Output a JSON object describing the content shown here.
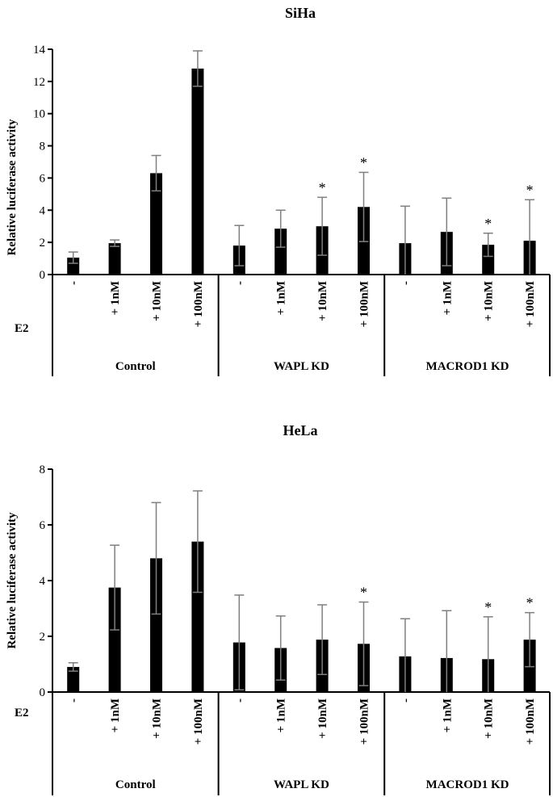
{
  "chart_data": [
    {
      "type": "bar",
      "title": "SiHa",
      "ylabel": "Relative luciferase activity",
      "ylim": [
        0,
        14
      ],
      "yticks": [
        "0",
        "2",
        "4",
        "6",
        "8",
        "10",
        "12",
        "14"
      ],
      "row_label": "E2",
      "categories": [
        "-",
        "+ 1nM",
        "+ 10nM",
        "+ 100nM",
        "-",
        "+ 1nM",
        "+ 10nM",
        "+ 100nM",
        "-",
        "+ 1nM",
        "+ 10nM",
        "+ 100nM"
      ],
      "groups": [
        "Control",
        "WAPL KD",
        "MACROD1 KD"
      ],
      "values": [
        1.05,
        1.95,
        6.3,
        12.8,
        1.8,
        2.85,
        3.0,
        4.2,
        1.95,
        2.65,
        1.85,
        2.1
      ],
      "errors": [
        0.35,
        0.2,
        1.1,
        1.1,
        1.25,
        1.15,
        1.8,
        2.15,
        2.3,
        2.1,
        0.72,
        2.55
      ],
      "significance": [
        "",
        "",
        "",
        "",
        "",
        "",
        "*",
        "*",
        "",
        "",
        "*",
        "*"
      ]
    },
    {
      "type": "bar",
      "title": "HeLa",
      "ylabel": "Relative luciferase activity",
      "ylim": [
        0,
        8
      ],
      "yticks": [
        "0",
        "2",
        "4",
        "6",
        "8"
      ],
      "row_label": "E2",
      "categories": [
        "-",
        "+ 1nM",
        "+ 10nM",
        "+ 100nM",
        "-",
        "+ 1nM",
        "+ 10nM",
        "+ 100nM",
        "-",
        "+ 1nM",
        "+ 10nM",
        "+ 100nM"
      ],
      "groups": [
        "Control",
        "WAPL KD",
        "MACROD1 KD"
      ],
      "values": [
        0.9,
        3.75,
        4.8,
        5.4,
        1.78,
        1.58,
        1.88,
        1.73,
        1.28,
        1.22,
        1.18,
        1.88
      ],
      "errors": [
        0.15,
        1.52,
        2.0,
        1.82,
        1.7,
        1.15,
        1.25,
        1.5,
        1.35,
        1.7,
        1.52,
        0.97
      ],
      "significance": [
        "",
        "",
        "",
        "",
        "",
        "",
        "",
        "*",
        "",
        "",
        "*",
        "*"
      ]
    }
  ]
}
